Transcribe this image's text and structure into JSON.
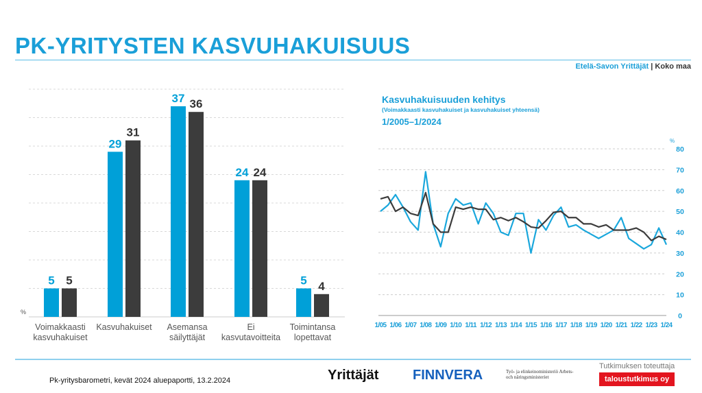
{
  "header": {
    "title": "PK-YRITYSTEN KASVUHAKUISUUS",
    "legend_region": "Etelä-Savon Yrittäjät",
    "legend_sep": " | ",
    "legend_country": "Koko maa"
  },
  "colors": {
    "region": "#00a0d8",
    "country": "#3c3c3c",
    "accent": "#1a9fd8"
  },
  "chart_data": [
    {
      "type": "bar",
      "ylabel": "%",
      "ylim": [
        0,
        40
      ],
      "grid": true,
      "categories": [
        [
          "Voimakkaasti",
          "kasvuhakuiset"
        ],
        [
          "Kasvuhakuiset"
        ],
        [
          "Asemansa",
          "säilyttäjät"
        ],
        [
          "Ei",
          "kasvutavoitteita"
        ],
        [
          "Toimintansa",
          "lopettavat"
        ]
      ],
      "series": [
        {
          "name": "Etelä-Savon Yrittäjät",
          "values": [
            5,
            29,
            37,
            24,
            5
          ]
        },
        {
          "name": "Koko maa",
          "values": [
            5,
            31,
            36,
            24,
            4
          ]
        }
      ]
    },
    {
      "type": "line",
      "title": "Kasvuhakuisuuden kehitys",
      "subtitle": "(Voimakkaasti kasvuhakuiset ja kasvuhakuiset yhteensä)",
      "period": "1/2005–1/2024",
      "ylabel": "%",
      "ylim": [
        0,
        80
      ],
      "yticks": [
        0,
        10,
        20,
        30,
        40,
        50,
        60,
        70,
        80
      ],
      "grid": true,
      "xticks": [
        "1/05",
        "1/06",
        "1/07",
        "1/08",
        "1/09",
        "1/10",
        "1/11",
        "1/12",
        "1/13",
        "1/14",
        "1/15",
        "1/16",
        "1/17",
        "1/18",
        "1/19",
        "1/20",
        "1/21",
        "1/22",
        "1/23",
        "1/24"
      ],
      "series": [
        {
          "name": "Etelä-Savon Yrittäjät",
          "values": [
            50,
            53,
            58,
            52,
            45,
            41,
            69,
            44,
            33,
            49,
            56,
            53,
            54,
            44,
            54,
            49,
            40,
            38.5,
            49,
            49,
            30,
            46,
            41,
            48,
            52,
            42.5,
            43.5,
            41,
            39,
            37,
            39,
            41,
            47,
            37,
            34.5,
            32,
            34,
            42,
            34
          ]
        },
        {
          "name": "Koko maa",
          "values": [
            56,
            57,
            50,
            52,
            49,
            48,
            59,
            44,
            40,
            40,
            52,
            51,
            52,
            51,
            51,
            46,
            47,
            45.5,
            47,
            45,
            42.5,
            42,
            45.5,
            49.5,
            50,
            47,
            47,
            44,
            44,
            42.5,
            43.5,
            41,
            41,
            41,
            42,
            40,
            36,
            38,
            36.5
          ]
        }
      ]
    }
  ],
  "footer": {
    "source": "Pk-yritysbarometri, kevät 2024 aluераportti, 13.2.2024",
    "credit": "Tutkimuksen toteuttaja",
    "partner": "taloustutkimus oy",
    "logos": [
      "Yrittäjät",
      "FINNVERA",
      "Työ- ja elinkeinoministeriö Arbets- och näringsministeriet"
    ]
  }
}
